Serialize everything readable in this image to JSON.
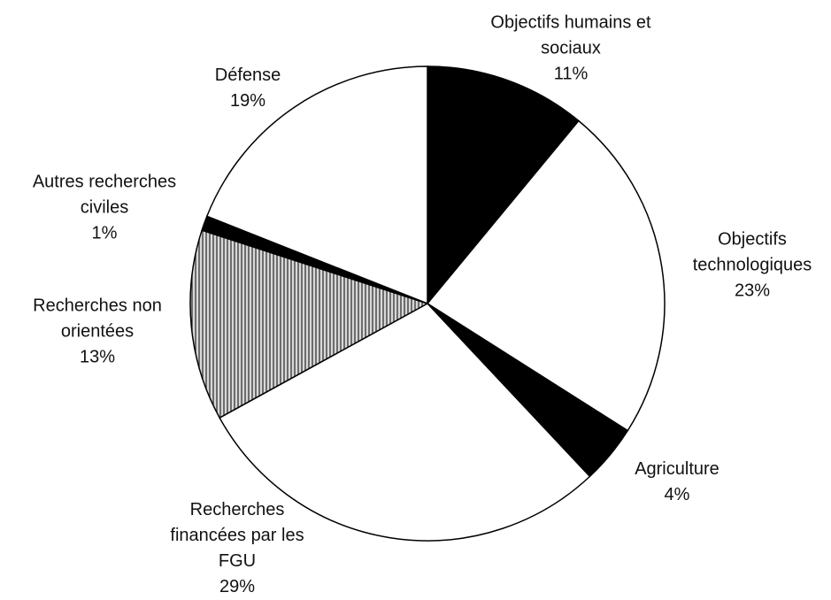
{
  "chart_data": {
    "type": "pie",
    "categories": [
      "Objectifs humains et sociaux",
      "Objectifs technologiques",
      "Agriculture",
      "Recherches financées par les FGU",
      "Recherches non orientées",
      "Autres recherches civiles",
      "Défense"
    ],
    "values": [
      11,
      23,
      4,
      29,
      13,
      1,
      19
    ],
    "value_labels": [
      "11%",
      "23%",
      "4%",
      "29%",
      "13%",
      "1%",
      "19%"
    ],
    "colors": [
      "#000000",
      "#ffffff",
      "#000000",
      "#ffffff",
      "hatch",
      "#000000",
      "#ffffff"
    ]
  }
}
